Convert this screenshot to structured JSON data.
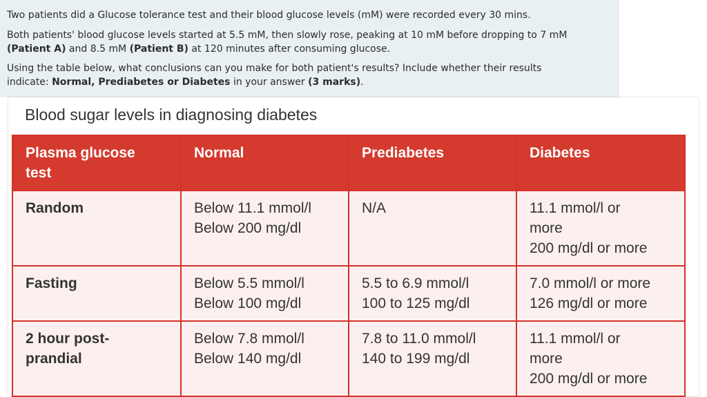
{
  "question": {
    "p1": "Two patients did a Glucose tolerance test and their blood glucose levels (mM) were recorded every 30 mins.",
    "p2_a": "Both patients' blood glucose levels started at 5.5 mM, then slowly rose, peaking at 10 mM before dropping to 7 mM",
    "p2_b1": "(Patient A)",
    "p2_b2": " and 8.5 mM ",
    "p2_b3": "(Patient B)",
    "p2_b4": " at 120 minutes after consuming glucose.",
    "p3_a": "Using the table below, what conclusions can you make for both patient's results? Include whether their results",
    "p3_b1": "indicate: ",
    "p3_b2": "Normal, Prediabetes or Diabetes",
    "p3_b3": " in your answer ",
    "p3_b4": "(3 marks)",
    "p3_b5": "."
  },
  "table": {
    "title": "Blood sugar levels in diagnosing diabetes",
    "headers": [
      "Plasma glucose",
      "test",
      "Normal",
      "Prediabetes",
      "Diabetes"
    ],
    "rows": [
      {
        "test": [
          "Random"
        ],
        "normal": [
          "Below 11.1 mmol/l",
          "Below 200 mg/dl"
        ],
        "prediabetes": [
          "N/A"
        ],
        "diabetes": [
          "11.1 mmol/l or",
          "more",
          "200 mg/dl or more"
        ]
      },
      {
        "test": [
          "Fasting"
        ],
        "normal": [
          "Below 5.5 mmol/l",
          "Below 100 mg/dl"
        ],
        "prediabetes": [
          "5.5 to 6.9 mmol/l",
          "100 to 125 mg/dl"
        ],
        "diabetes": [
          "7.0 mmol/l or more",
          "126 mg/dl or more"
        ]
      },
      {
        "test": [
          "2 hour post-",
          "prandial"
        ],
        "normal": [
          "Below 7.8 mmol/l",
          "Below 140 mg/dl"
        ],
        "prediabetes": [
          "7.8 to 11.0 mmol/l",
          "140 to 199 mg/dl"
        ],
        "diabetes": [
          "11.1 mmol/l or",
          "more",
          "200 mg/dl or more"
        ]
      }
    ]
  },
  "colors": {
    "header_red": "#d53a2e",
    "cell_bg": "#fbf0ef",
    "question_bg": "#e9f0f3"
  }
}
